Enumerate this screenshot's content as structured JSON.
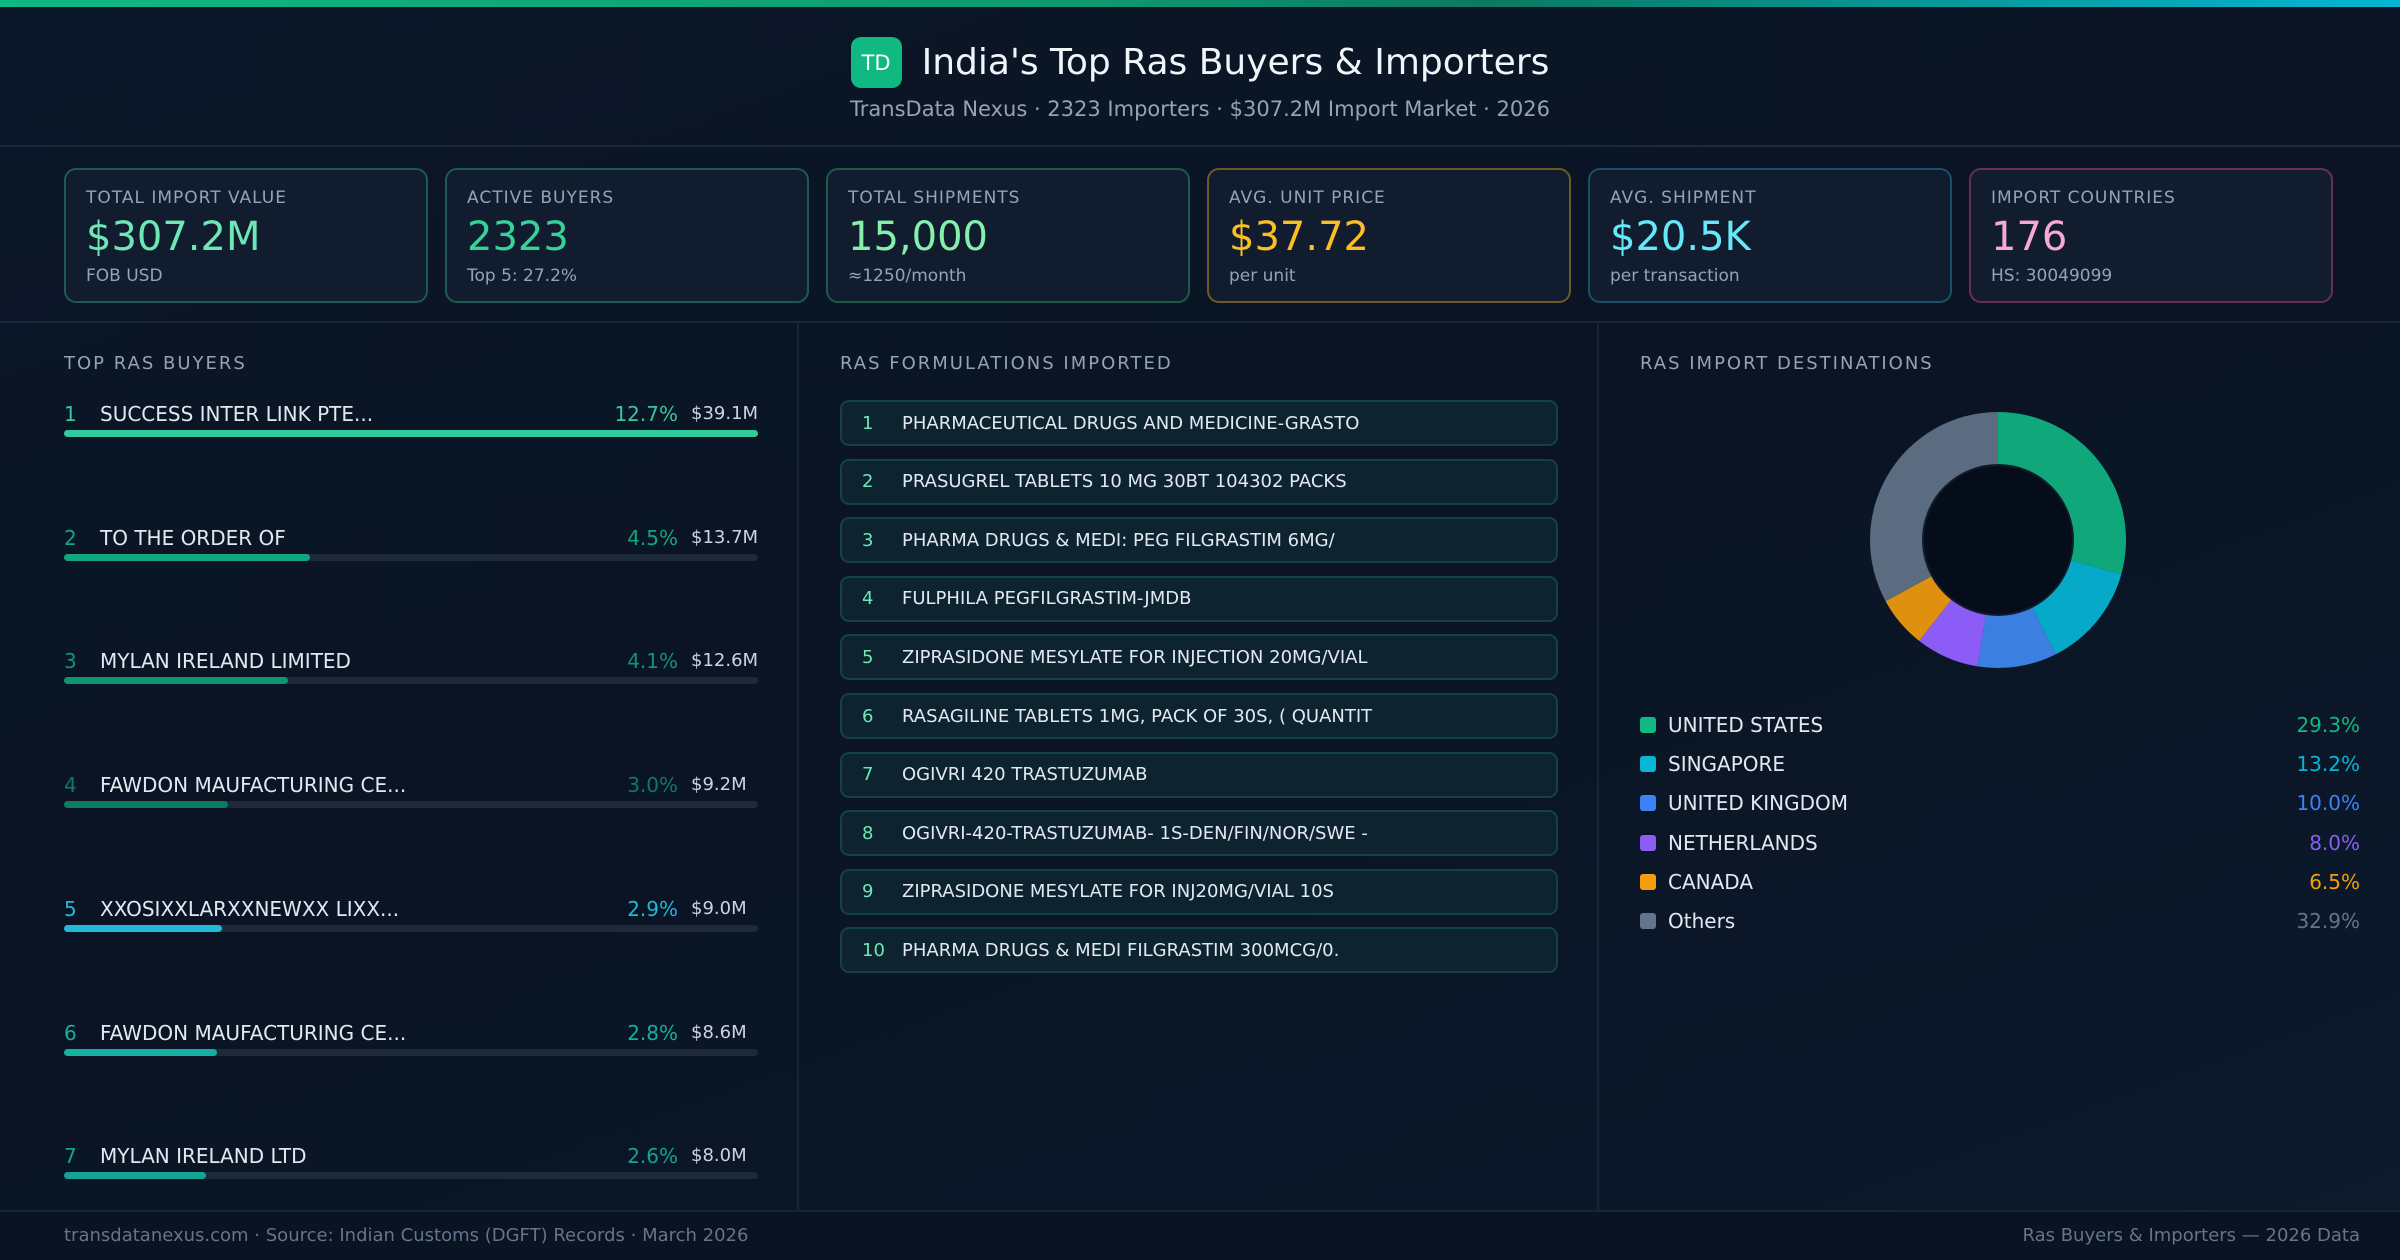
{
  "header": {
    "logo_text": "TD",
    "title": "India's Top Ras Buyers & Importers",
    "subtitle": "TransData Nexus · 2323 Importers · $307.2M Import Market · 2026"
  },
  "kpis": [
    {
      "label": "Total Import Value",
      "value": "$307.2M",
      "sub": "FOB USD",
      "color": "#6ee7b7",
      "border": "#1f5a50"
    },
    {
      "label": "Active Buyers",
      "value": "2323",
      "sub": "Top 5: 27.2%",
      "color": "#34d399",
      "border": "#1f5a50"
    },
    {
      "label": "Total Shipments",
      "value": "15,000",
      "sub": "≈1250/month",
      "color": "#86efac",
      "border": "#1f5a46"
    },
    {
      "label": "Avg. Unit Price",
      "value": "$37.72",
      "sub": "per unit",
      "color": "#fbbf24",
      "border": "#6b5a22"
    },
    {
      "label": "Avg. Shipment",
      "value": "$20.5K",
      "sub": "per transaction",
      "color": "#67e8f9",
      "border": "#1c5068"
    },
    {
      "label": "Import Countries",
      "value": "176",
      "sub": "HS: 30049099",
      "color": "#f9a8d4",
      "border": "#6a2e55"
    }
  ],
  "buyers": {
    "title": "TOP RAS BUYERS",
    "items": [
      {
        "rank": "1",
        "name": "SUCCESS INTER LINK PTE...",
        "pct": "12.7%",
        "share": 12.7,
        "value": "$39.1M",
        "color": "#34c99a"
      },
      {
        "rank": "2",
        "name": "TO THE ORDER OF",
        "pct": "4.5%",
        "share": 4.5,
        "value": "$13.7M",
        "color": "#12a67e"
      },
      {
        "rank": "3",
        "name": "MYLAN IRELAND LIMITED",
        "pct": "4.1%",
        "share": 4.1,
        "value": "$12.6M",
        "color": "#0f9474"
      },
      {
        "rank": "4",
        "name": "FAWDON MAUFACTURING CE...",
        "pct": "3.0%",
        "share": 3.0,
        "value": "$9.2M",
        "color": "#0d7b60"
      },
      {
        "rank": "5",
        "name": "XXOSIXXLARXXNEWXX LIXX...",
        "pct": "2.9%",
        "share": 2.9,
        "value": "$9.0M",
        "color": "#22b8d8"
      },
      {
        "rank": "6",
        "name": "FAWDON MAUFACTURING CE...",
        "pct": "2.8%",
        "share": 2.8,
        "value": "$8.6M",
        "color": "#14b0a0"
      },
      {
        "rank": "7",
        "name": "MYLAN IRELAND LTD",
        "pct": "2.6%",
        "share": 2.6,
        "value": "$8.0M",
        "color": "#14a394"
      }
    ]
  },
  "formulations": {
    "title": "RAS FORMULATIONS IMPORTED",
    "items": [
      {
        "rank": "1",
        "text": "PHARMACEUTICAL DRUGS AND MEDICINE-GRASTO"
      },
      {
        "rank": "2",
        "text": "PRASUGREL TABLETS 10 MG 30BT 104302 PACKS"
      },
      {
        "rank": "3",
        "text": "PHARMA DRUGS & MEDI: PEG FILGRASTIM 6MG/"
      },
      {
        "rank": "4",
        "text": "FULPHILA PEGFILGRASTIM-JMDB"
      },
      {
        "rank": "5",
        "text": "ZIPRASIDONE MESYLATE FOR INJECTION 20MG/VIAL"
      },
      {
        "rank": "6",
        "text": "RASAGILINE TABLETS 1MG, PACK OF 30S, ( QUANTIT"
      },
      {
        "rank": "7",
        "text": "OGIVRI 420 TRASTUZUMAB"
      },
      {
        "rank": "8",
        "text": "OGIVRI-420-TRASTUZUMAB- 1S-DEN/FIN/NOR/SWE -"
      },
      {
        "rank": "9",
        "text": "ZIPRASIDONE MESYLATE FOR INJ20MG/VIAL 10S"
      },
      {
        "rank": "10",
        "text": "PHARMA DRUGS & MEDI FILGRASTIM 300MCG/0."
      }
    ]
  },
  "destinations": {
    "title": "RAS IMPORT DESTINATIONS",
    "chart_data": {
      "type": "pie",
      "donut": true,
      "categories": [
        "UNITED STATES",
        "SINGAPORE",
        "UNITED KINGDOM",
        "NETHERLANDS",
        "CANADA",
        "Others"
      ],
      "values": [
        29.3,
        13.2,
        10.0,
        8.0,
        6.5,
        32.9
      ],
      "labels": [
        "29.3%",
        "13.2%",
        "10.0%",
        "8.0%",
        "6.5%",
        "32.9%"
      ],
      "colors": [
        "#10a87a",
        "#06a9c8",
        "#3b7fe0",
        "#8b5cf6",
        "#e0900f",
        "#5b6b80"
      ],
      "text_colors": [
        "#10b981",
        "#06b6d4",
        "#3b82f6",
        "#8b5cf6",
        "#f59e0b",
        "#64748b"
      ],
      "legend": "bottom"
    }
  },
  "footer": {
    "left": "transdatanexus.com · Source: Indian Customs (DGFT) Records · March 2026",
    "right": "Ras Buyers & Importers — 2026 Data"
  }
}
